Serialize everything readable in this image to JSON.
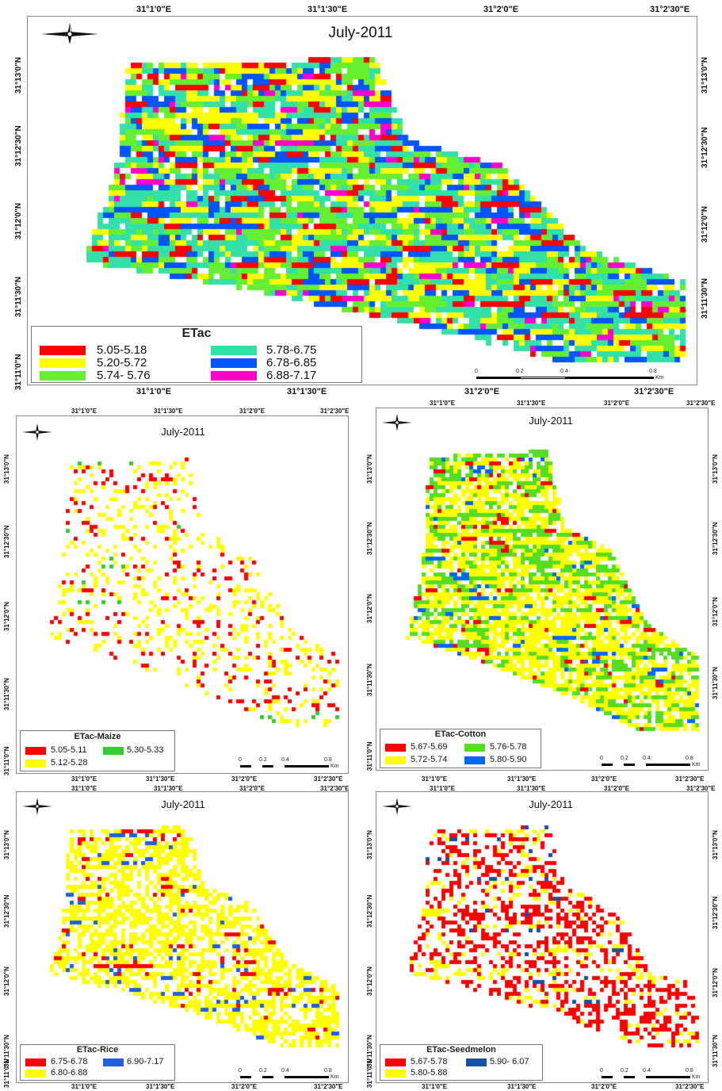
{
  "panels": [
    {
      "id": "all",
      "title": "July-2011",
      "legend_title": "ETac",
      "legend_items": [
        {
          "label": "5.05-5.18",
          "color": "#ff0000"
        },
        {
          "label": "5.78-6.75",
          "color": "#33e0a8"
        },
        {
          "label": "5.20-5.72",
          "color": "#ffff00"
        },
        {
          "label": "6.78-6.85",
          "color": "#0055ff"
        },
        {
          "label": "5.74- 5.76",
          "color": "#66ee33"
        },
        {
          "label": "6.88-7.17",
          "color": "#ff00cc"
        }
      ],
      "x_ticks_top": [
        "31°1'0\"E",
        "31°1'30\"E",
        "31°2'0\"E",
        "31°2'30\"E"
      ],
      "x_ticks_bottom": [
        "31°1'0\"E",
        "31°1'30\"E",
        "31°2'0\"E",
        "31°2'30\"E"
      ],
      "y_ticks": [
        "31°13'0\"N",
        "31°12'30\"N",
        "31°12'0\"N",
        "31°11'30\"N",
        "31°11'0\"N"
      ],
      "scale_ticks": [
        "0",
        "0.2",
        "0.4",
        "0.8"
      ],
      "scale_unit": "Km"
    },
    {
      "id": "maize",
      "title": "July-2011",
      "legend_title": "ETac-Maize",
      "legend_items": [
        {
          "label": "5.05-5.11",
          "color": "#ff0000"
        },
        {
          "label": "5.30-5.33",
          "color": "#33cc33"
        },
        {
          "label": "5.12-5.28",
          "color": "#ffff00"
        }
      ],
      "x_ticks_top": [
        "31°1'0\"E",
        "31°1'30\"E",
        "31°2'0\"E",
        "31°2'30\"E"
      ],
      "x_ticks_bottom": [
        "31°1'0\"E",
        "31°1'30\"E",
        "31°2'0\"E",
        "31°2'30\"E"
      ],
      "y_ticks": [
        "31°13'0\"N",
        "31°12'30\"N",
        "31°12'0\"N",
        "31°11'30\"N",
        "31°11'0\"N"
      ],
      "scale_ticks": [
        "0",
        "0.2",
        "0.4",
        "0.8"
      ],
      "scale_unit": "Km"
    },
    {
      "id": "cotton",
      "title": "July-2011",
      "legend_title": "ETac-Cotton",
      "legend_items": [
        {
          "label": "5.67-5.69",
          "color": "#ff0000"
        },
        {
          "label": "5.76-5.78",
          "color": "#55dd22"
        },
        {
          "label": "5.72-5.74",
          "color": "#ffff00"
        },
        {
          "label": "5.80-5.90",
          "color": "#0066ff"
        }
      ],
      "x_ticks_top": [
        "31°1'0\"E",
        "31°1'30\"E",
        "31°2'0\"E",
        "31°2'30\"E"
      ],
      "x_ticks_bottom": [
        "31°1'0\"E",
        "31°1'30\"E",
        "31°2'0\"E",
        "31°2'30\"E"
      ],
      "y_ticks_left": [
        "31°13'0\"N",
        "31°12'30\"N",
        "31°12'0\"N",
        "31°11'30\"N",
        "31°11'0\"N"
      ],
      "y_ticks_right": [
        "31°13'0\"N",
        "31°12'30\"N",
        "31°12'0\"N",
        "31°11'30\"N"
      ],
      "scale_ticks": [
        "0",
        "0.2",
        "0.4",
        "0.8"
      ],
      "scale_unit": "Km"
    },
    {
      "id": "rice",
      "title": "July-2011",
      "legend_title": "ETac-Rice",
      "legend_items": [
        {
          "label": "6.75-6.78",
          "color": "#ff0000"
        },
        {
          "label": "6.90-7.17",
          "color": "#1f5fe0"
        },
        {
          "label": "6.80-6.88",
          "color": "#ffff00"
        }
      ],
      "x_ticks_top": [
        "31°1'0\"E",
        "31°1'30\"E",
        "31°2'0\"E",
        "31°2'30\"E"
      ],
      "x_ticks_bottom": [
        "31°1'0\"E",
        "31°1'30\"E",
        "31°2'0\"E",
        "31°2'30\"E"
      ],
      "y_ticks": [
        "31°13'0\"N",
        "31°12'30\"N",
        "31°12'0\"N",
        "31°11'30\"N",
        "31°11'0\"N"
      ],
      "scale_ticks": [
        "0",
        "0.2",
        "0.4",
        "0.8"
      ],
      "scale_unit": "Km"
    },
    {
      "id": "seedmelon",
      "title": "July-2011",
      "legend_title": "ETac-Seedmelon",
      "legend_items": [
        {
          "label": "5.67-5.78",
          "color": "#ff0000"
        },
        {
          "label": "5.90- 6.07",
          "color": "#1a4fa0"
        },
        {
          "label": "5.80-5.88",
          "color": "#ffff00"
        }
      ],
      "x_ticks_top": [
        "31°1'0\"E",
        "31°1'30\"E",
        "31°2'0\"E",
        "31°2'30\"E"
      ],
      "x_ticks_bottom": [
        "31°1'0\"E",
        "31°1'30\"E",
        "31°2'0\"E",
        "31°2'30\"E"
      ],
      "y_ticks_left": [
        "31°13'0\"N",
        "31°12'30\"N",
        "31°12'0\"N",
        "31°11'30\"N",
        "31°11'0\"N"
      ],
      "y_ticks_right": [
        "31°13'0\"N",
        "31°12'30\"N",
        "31°12'0\"N",
        "31°11'30\"N"
      ],
      "scale_ticks": [
        "0",
        "0.2",
        "0.4",
        "0.8"
      ],
      "scale_unit": "Km"
    }
  ]
}
